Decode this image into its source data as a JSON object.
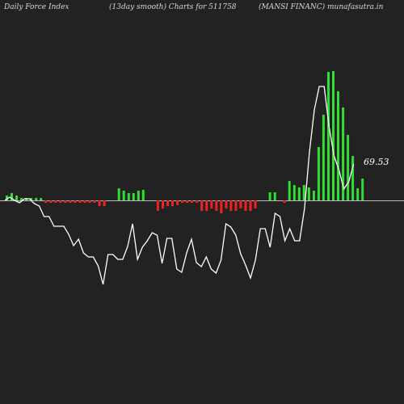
{
  "header": {
    "left": "Daily Force  Index",
    "center": "(13day smooth) Charts for 511758",
    "right": "(MANSI FINANC) munafasutra.in"
  },
  "chart_data": {
    "type": "bar",
    "title": "(13day smooth) Charts for 511758",
    "last_value_label": "69.53",
    "colors": {
      "positive": "#33dd33",
      "negative": "#ee2222",
      "line": "#ffffff",
      "zero": "#bbbbbb",
      "background": "#222222"
    },
    "bars": [
      6,
      9,
      6,
      3,
      3,
      3,
      3,
      3,
      -3,
      -3,
      -3,
      -3,
      -3,
      -3,
      -3,
      -3,
      -3,
      -3,
      -3,
      -7,
      -7,
      0,
      0,
      15,
      12,
      9,
      9,
      12,
      13,
      0,
      0,
      -13,
      -10,
      -7,
      -7,
      -6,
      -3,
      -3,
      -3,
      -3,
      -13,
      -13,
      -10,
      -13,
      -16,
      -10,
      -13,
      -13,
      -10,
      -13,
      -13,
      -10,
      0,
      0,
      10,
      10,
      0,
      -3,
      24,
      19,
      16,
      19,
      16,
      12,
      66,
      106,
      159,
      160,
      135,
      115,
      81,
      55,
      15,
      27
    ],
    "line": [
      0,
      4,
      0,
      -3,
      2,
      2,
      -4,
      -7,
      -20,
      -20,
      -32,
      -32,
      -32,
      -42,
      -56,
      -48,
      -65,
      -70,
      -70,
      -81,
      -104,
      -67,
      -67,
      -73,
      -73,
      -57,
      -29,
      -73,
      -58,
      -50,
      -40,
      -43,
      -78,
      -47,
      -47,
      -85,
      -89,
      -65,
      -48,
      -77,
      -82,
      -70,
      -85,
      -90,
      -74,
      -29,
      -33,
      -43,
      -66,
      -80,
      -96,
      -74,
      -35,
      -35,
      -58,
      -16,
      -20,
      -50,
      -35,
      -50,
      -50,
      -10,
      60,
      112,
      141,
      141,
      91,
      55,
      38,
      14,
      23,
      45
    ]
  }
}
